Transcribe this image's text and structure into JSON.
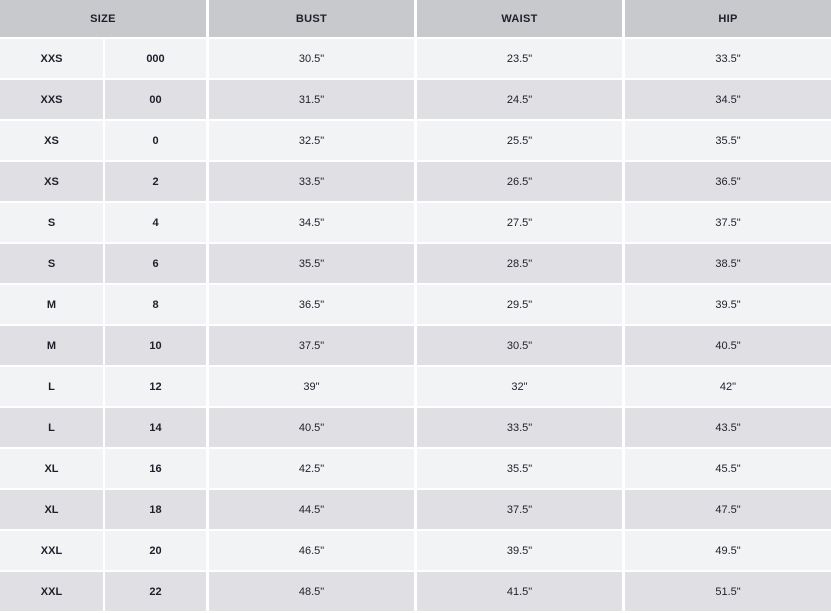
{
  "headers": {
    "size": "SIZE",
    "bust": "BUST",
    "waist": "WAIST",
    "hip": "HIP"
  },
  "rows": [
    {
      "letter": "XXS",
      "number": "000",
      "bust": "30.5\"",
      "waist": "23.5\"",
      "hip": "33.5\""
    },
    {
      "letter": "XXS",
      "number": "00",
      "bust": "31.5\"",
      "waist": "24.5\"",
      "hip": "34.5\""
    },
    {
      "letter": "XS",
      "number": "0",
      "bust": "32.5\"",
      "waist": "25.5\"",
      "hip": "35.5\""
    },
    {
      "letter": "XS",
      "number": "2",
      "bust": "33.5\"",
      "waist": "26.5\"",
      "hip": "36.5\""
    },
    {
      "letter": "S",
      "number": "4",
      "bust": "34.5\"",
      "waist": "27.5\"",
      "hip": "37.5\""
    },
    {
      "letter": "S",
      "number": "6",
      "bust": "35.5\"",
      "waist": "28.5\"",
      "hip": "38.5\""
    },
    {
      "letter": "M",
      "number": "8",
      "bust": "36.5\"",
      "waist": "29.5\"",
      "hip": "39.5\""
    },
    {
      "letter": "M",
      "number": "10",
      "bust": "37.5\"",
      "waist": "30.5\"",
      "hip": "40.5\""
    },
    {
      "letter": "L",
      "number": "12",
      "bust": "39\"",
      "waist": "32\"",
      "hip": "42\""
    },
    {
      "letter": "L",
      "number": "14",
      "bust": "40.5\"",
      "waist": "33.5\"",
      "hip": "43.5\""
    },
    {
      "letter": "XL",
      "number": "16",
      "bust": "42.5\"",
      "waist": "35.5\"",
      "hip": "45.5\""
    },
    {
      "letter": "XL",
      "number": "18",
      "bust": "44.5\"",
      "waist": "37.5\"",
      "hip": "47.5\""
    },
    {
      "letter": "XXL",
      "number": "20",
      "bust": "46.5\"",
      "waist": "39.5\"",
      "hip": "49.5\""
    },
    {
      "letter": "XXL",
      "number": "22",
      "bust": "48.5\"",
      "waist": "41.5\"",
      "hip": "51.5\""
    }
  ],
  "colors": {
    "header_bg": "#c8c9cc",
    "row_light": "#f2f3f5",
    "row_dark": "#e0e0e4",
    "text": "#1d1f2b"
  }
}
